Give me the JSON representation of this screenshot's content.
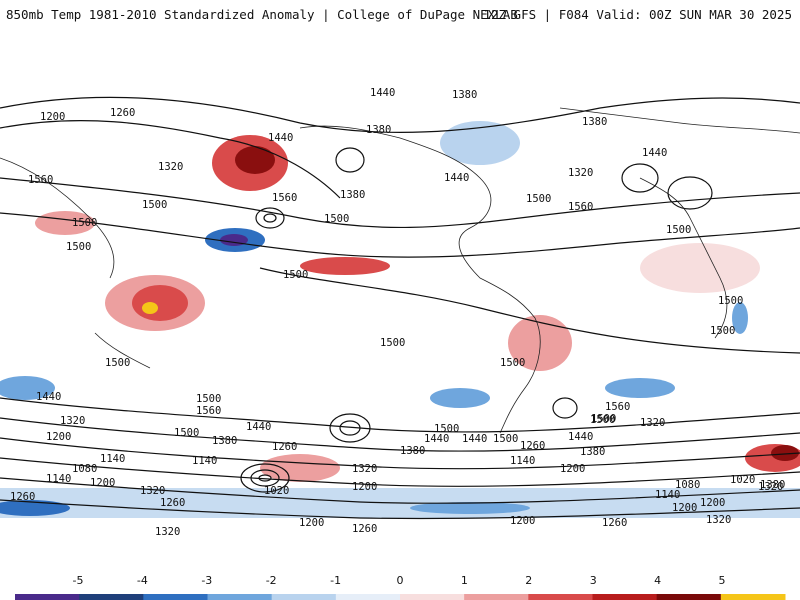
{
  "header": {
    "title": "850mb Temp 1981-2010 Standardized Anomaly | College of DuPage NEXLAB",
    "run_info": "12Z GFS | F084 Valid: 00Z SUN MAR 30 2025"
  },
  "colorbar": {
    "ticks": [
      "-5",
      "-4",
      "-3",
      "-2",
      "-1",
      "0",
      "1",
      "2",
      "3",
      "4",
      "5"
    ],
    "colors": [
      "#4a2a8a",
      "#1f3f7a",
      "#2f6fc0",
      "#6fa6dd",
      "#b9d3ee",
      "#e6eef8",
      "#f7dede",
      "#ec9f9f",
      "#d94b4b",
      "#b81d1d",
      "#7a0a0a",
      "#f5c518"
    ]
  },
  "contour_labels": [
    "1200",
    "1260",
    "1320",
    "1440",
    "1380",
    "1380",
    "1320",
    "1440",
    "1440",
    "1560",
    "1560",
    "1500",
    "1500",
    "1500",
    "1440",
    "1380",
    "1380",
    "1500",
    "1500",
    "1560",
    "1500",
    "1500",
    "1500",
    "1500",
    "1500",
    "1500",
    "1440",
    "1500",
    "1560",
    "1500",
    "1560",
    "1500",
    "1380",
    "1500",
    "1440",
    "1320",
    "1440",
    "1200",
    "1380",
    "1500",
    "1500",
    "1320",
    "1440",
    "1260",
    "1440",
    "1260",
    "1380",
    "1320",
    "1200",
    "1140",
    "1080",
    "1140",
    "1200",
    "1140",
    "1020",
    "1140",
    "1200",
    "1260",
    "1320",
    "1200",
    "1260",
    "1320",
    "1320",
    "1260",
    "1200",
    "1200",
    "1260",
    "1320",
    "1140",
    "1200",
    "1080",
    "1020",
    "1380",
    "1500"
  ]
}
